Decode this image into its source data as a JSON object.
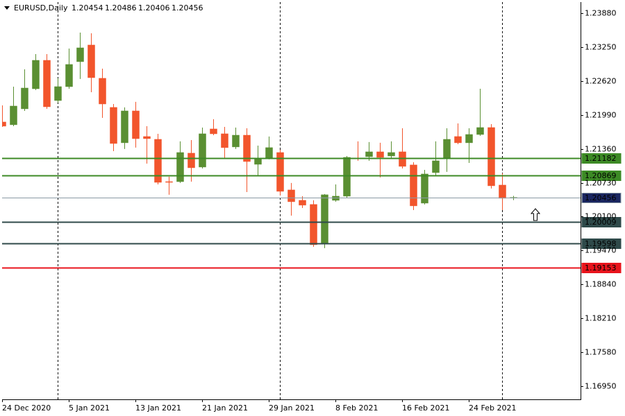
{
  "chart_data": {
    "type": "candlestick",
    "symbol": "EURUSD,Daily",
    "categories": [
      "24 Dec 2020",
      null,
      null,
      null,
      null,
      null,
      "5 Jan 2021",
      null,
      null,
      null,
      null,
      null,
      "13 Jan 2021",
      null,
      null,
      null,
      null,
      null,
      "21 Jan 2021",
      null,
      null,
      null,
      null,
      null,
      "29 Jan 2021",
      null,
      null,
      null,
      null,
      null,
      "8 Feb 2021",
      null,
      null,
      null,
      null,
      null,
      "16 Feb 2021",
      null,
      null,
      null,
      null,
      null,
      "24 Feb 2021",
      null,
      null,
      null,
      null
    ],
    "open": [
      1.21858,
      1.21807,
      1.22103,
      1.22476,
      1.23004,
      1.22257,
      1.22515,
      1.22979,
      1.23288,
      1.2267,
      1.22129,
      1.21472,
      1.22064,
      1.21588,
      1.21536,
      1.2075,
      1.2075,
      1.21279,
      1.21021,
      1.21729,
      1.21639,
      1.21395,
      1.21613,
      1.21072,
      1.21188,
      1.21291,
      1.20596,
      1.20403,
      1.20326,
      1.19591,
      1.20403,
      1.2048,
      1.21188,
      1.21214,
      1.21304,
      1.21227,
      1.21304,
      1.2106,
      1.20351,
      1.20918,
      1.21188,
      1.21588,
      1.21472,
      1.21626,
      1.21755,
      1.20686,
      1.20454
    ],
    "high": [
      1.22167,
      1.22515,
      1.22837,
      1.2312,
      1.2312,
      1.2267,
      1.23223,
      1.2352,
      1.23507,
      1.2285,
      1.22193,
      1.22129,
      1.22232,
      1.21781,
      1.21639,
      1.20841,
      1.21498,
      1.21523,
      1.21755,
      1.2191,
      1.21768,
      1.21755,
      1.21742,
      1.2142,
      1.21588,
      1.21343,
      1.20725,
      1.2048,
      1.20403,
      1.20519,
      1.20699,
      1.21227,
      1.21498,
      1.21485,
      1.21472,
      1.21498,
      1.21742,
      1.21111,
      1.20969,
      1.21498,
      1.21742,
      1.21832,
      1.21742,
      1.22476,
      1.21819,
      1.20905,
      1.20486
    ],
    "low": [
      1.21768,
      1.21781,
      1.22064,
      1.22451,
      1.22103,
      1.22219,
      1.22476,
      1.22657,
      1.22412,
      1.21935,
      1.21317,
      1.21356,
      1.21382,
      1.21085,
      1.20699,
      1.20506,
      1.20725,
      1.2075,
      1.20995,
      1.21613,
      1.21188,
      1.21356,
      1.20557,
      1.20866,
      1.21163,
      1.20493,
      1.20119,
      1.20261,
      1.19539,
      1.19514,
      1.20377,
      1.20454,
      1.21137,
      1.21137,
      1.20828,
      1.21188,
      1.20995,
      1.20222,
      1.20326,
      1.20866,
      1.20931,
      1.21446,
      1.21098,
      1.21601,
      1.20622,
      1.20222,
      1.20406
    ],
    "close": [
      1.21781,
      1.22154,
      1.22489,
      1.23004,
      1.22141,
      1.22515,
      1.22927,
      1.23236,
      1.22682,
      1.22193,
      1.21459,
      1.22064,
      1.21549,
      1.21549,
      1.20737,
      1.20737,
      1.21291,
      1.21008,
      1.21639,
      1.21639,
      1.21382,
      1.21613,
      1.21124,
      1.21175,
      1.21382,
      1.2057,
      1.20377,
      1.20313,
      1.19578,
      1.20506,
      1.2048,
      1.21201,
      1.21175,
      1.21304,
      1.21201,
      1.21291,
      1.21034,
      1.203,
      1.20892,
      1.21137,
      1.21536,
      1.21472,
      1.21626,
      1.21755,
      1.20673,
      1.20441,
      1.20456
    ],
    "up_color": "#5a8f32",
    "down_color": "#f2552c",
    "bid_color": "#8a99a4",
    "bid_label_color": "#1a2660",
    "levels": [
      {
        "value": 1.21182,
        "color": "#3c8a25"
      },
      {
        "value": 1.20869,
        "color": "#3c8a25"
      },
      {
        "value": 1.20009,
        "color": "#2f4a4a"
      },
      {
        "value": 1.19598,
        "color": "#2f4a4a"
      },
      {
        "value": 1.19153,
        "color": "#e8141c"
      }
    ],
    "ylim": [
      1.16705,
      1.24086
    ],
    "yticks": [
      {
        "value": 1.2388,
        "label": "1.23880"
      },
      {
        "value": 1.2325,
        "label": "1.23250"
      },
      {
        "value": 1.2262,
        "label": "1.22620"
      },
      {
        "value": 1.2199,
        "label": "1.21990"
      },
      {
        "value": 1.2136,
        "label": "1.21360"
      },
      {
        "value": 1.2073,
        "label": "1.20730"
      },
      {
        "value": 1.201,
        "label": "1.20100"
      },
      {
        "value": 1.1947,
        "label": "1.19470"
      },
      {
        "value": 1.1884,
        "label": "1.18840"
      },
      {
        "value": 1.1821,
        "label": "1.18210"
      },
      {
        "value": 1.1758,
        "label": "1.17580"
      },
      {
        "value": 1.1695,
        "label": "1.16950"
      }
    ]
  }
}
